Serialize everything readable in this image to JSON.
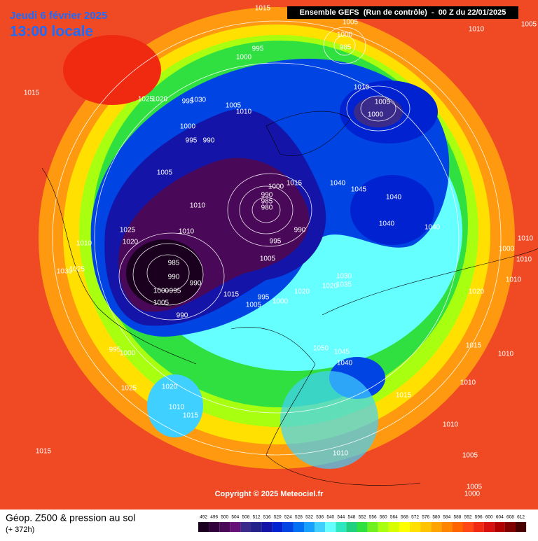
{
  "header": {
    "date": "Jeudi 6 février 2025",
    "time": "13:00 locale",
    "run": "Ensemble GEFS  (Run de contrôle)  -  00 Z du 22/01/2025"
  },
  "map": {
    "copyright": "Copyright © 2025 Meteociel.fr",
    "pressure_labels": [
      1015,
      1005,
      1010,
      1005,
      1000,
      985,
      995,
      1000,
      1015,
      1025,
      1020,
      995,
      1030,
      1010,
      1005,
      1000,
      1005,
      1010,
      1000,
      995,
      990,
      1005,
      1015,
      1000,
      1040,
      1045,
      990,
      985,
      980,
      1010,
      1040,
      1025,
      1010,
      990,
      1040,
      1040,
      1020,
      995,
      1010,
      1010,
      1000,
      1005,
      1010,
      1030,
      1025,
      985,
      990,
      990,
      1000,
      995,
      1030,
      1035,
      1020,
      1020,
      1015,
      995,
      1000,
      1005,
      1005,
      990,
      1020,
      1010,
      995,
      1000,
      1050,
      1045,
      1040,
      1015,
      1010,
      1025,
      1020,
      1010,
      1015,
      1015,
      1010,
      1010,
      1010,
      1015,
      1005,
      1005,
      1000
    ]
  },
  "footer": {
    "title": "Géop. Z500 & pression au sol",
    "lead": "(+ 372h)",
    "scale": {
      "values": [
        492,
        496,
        500,
        504,
        508,
        512,
        516,
        520,
        524,
        528,
        532,
        536,
        540,
        544,
        548,
        552,
        556,
        560,
        564,
        568,
        572,
        576,
        580,
        584,
        588,
        592,
        596,
        600,
        604,
        608,
        612
      ],
      "colors": [
        "#1a001e",
        "#30003a",
        "#4a0858",
        "#661078",
        "#3a2a8a",
        "#22228a",
        "#1414a8",
        "#0022d0",
        "#0044e4",
        "#0070f4",
        "#18a0ff",
        "#40d0ff",
        "#66ffff",
        "#30e8c0",
        "#20d080",
        "#30e040",
        "#70f020",
        "#a8ff10",
        "#d8ff00",
        "#ffff00",
        "#ffe000",
        "#ffc400",
        "#ffa400",
        "#ff8400",
        "#ff6400",
        "#ff4814",
        "#f02a10",
        "#d81010",
        "#b00000",
        "#800000",
        "#480000"
      ]
    }
  }
}
